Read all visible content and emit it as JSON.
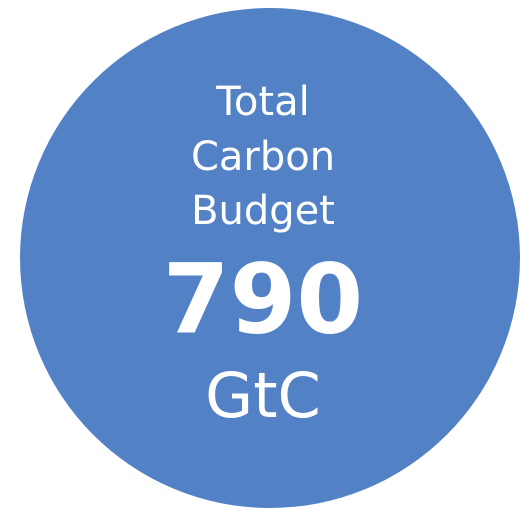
{
  "circle": {
    "label": [
      "Total",
      "Carbon",
      "Budget"
    ],
    "value": 790,
    "unit": "GtC"
  }
}
